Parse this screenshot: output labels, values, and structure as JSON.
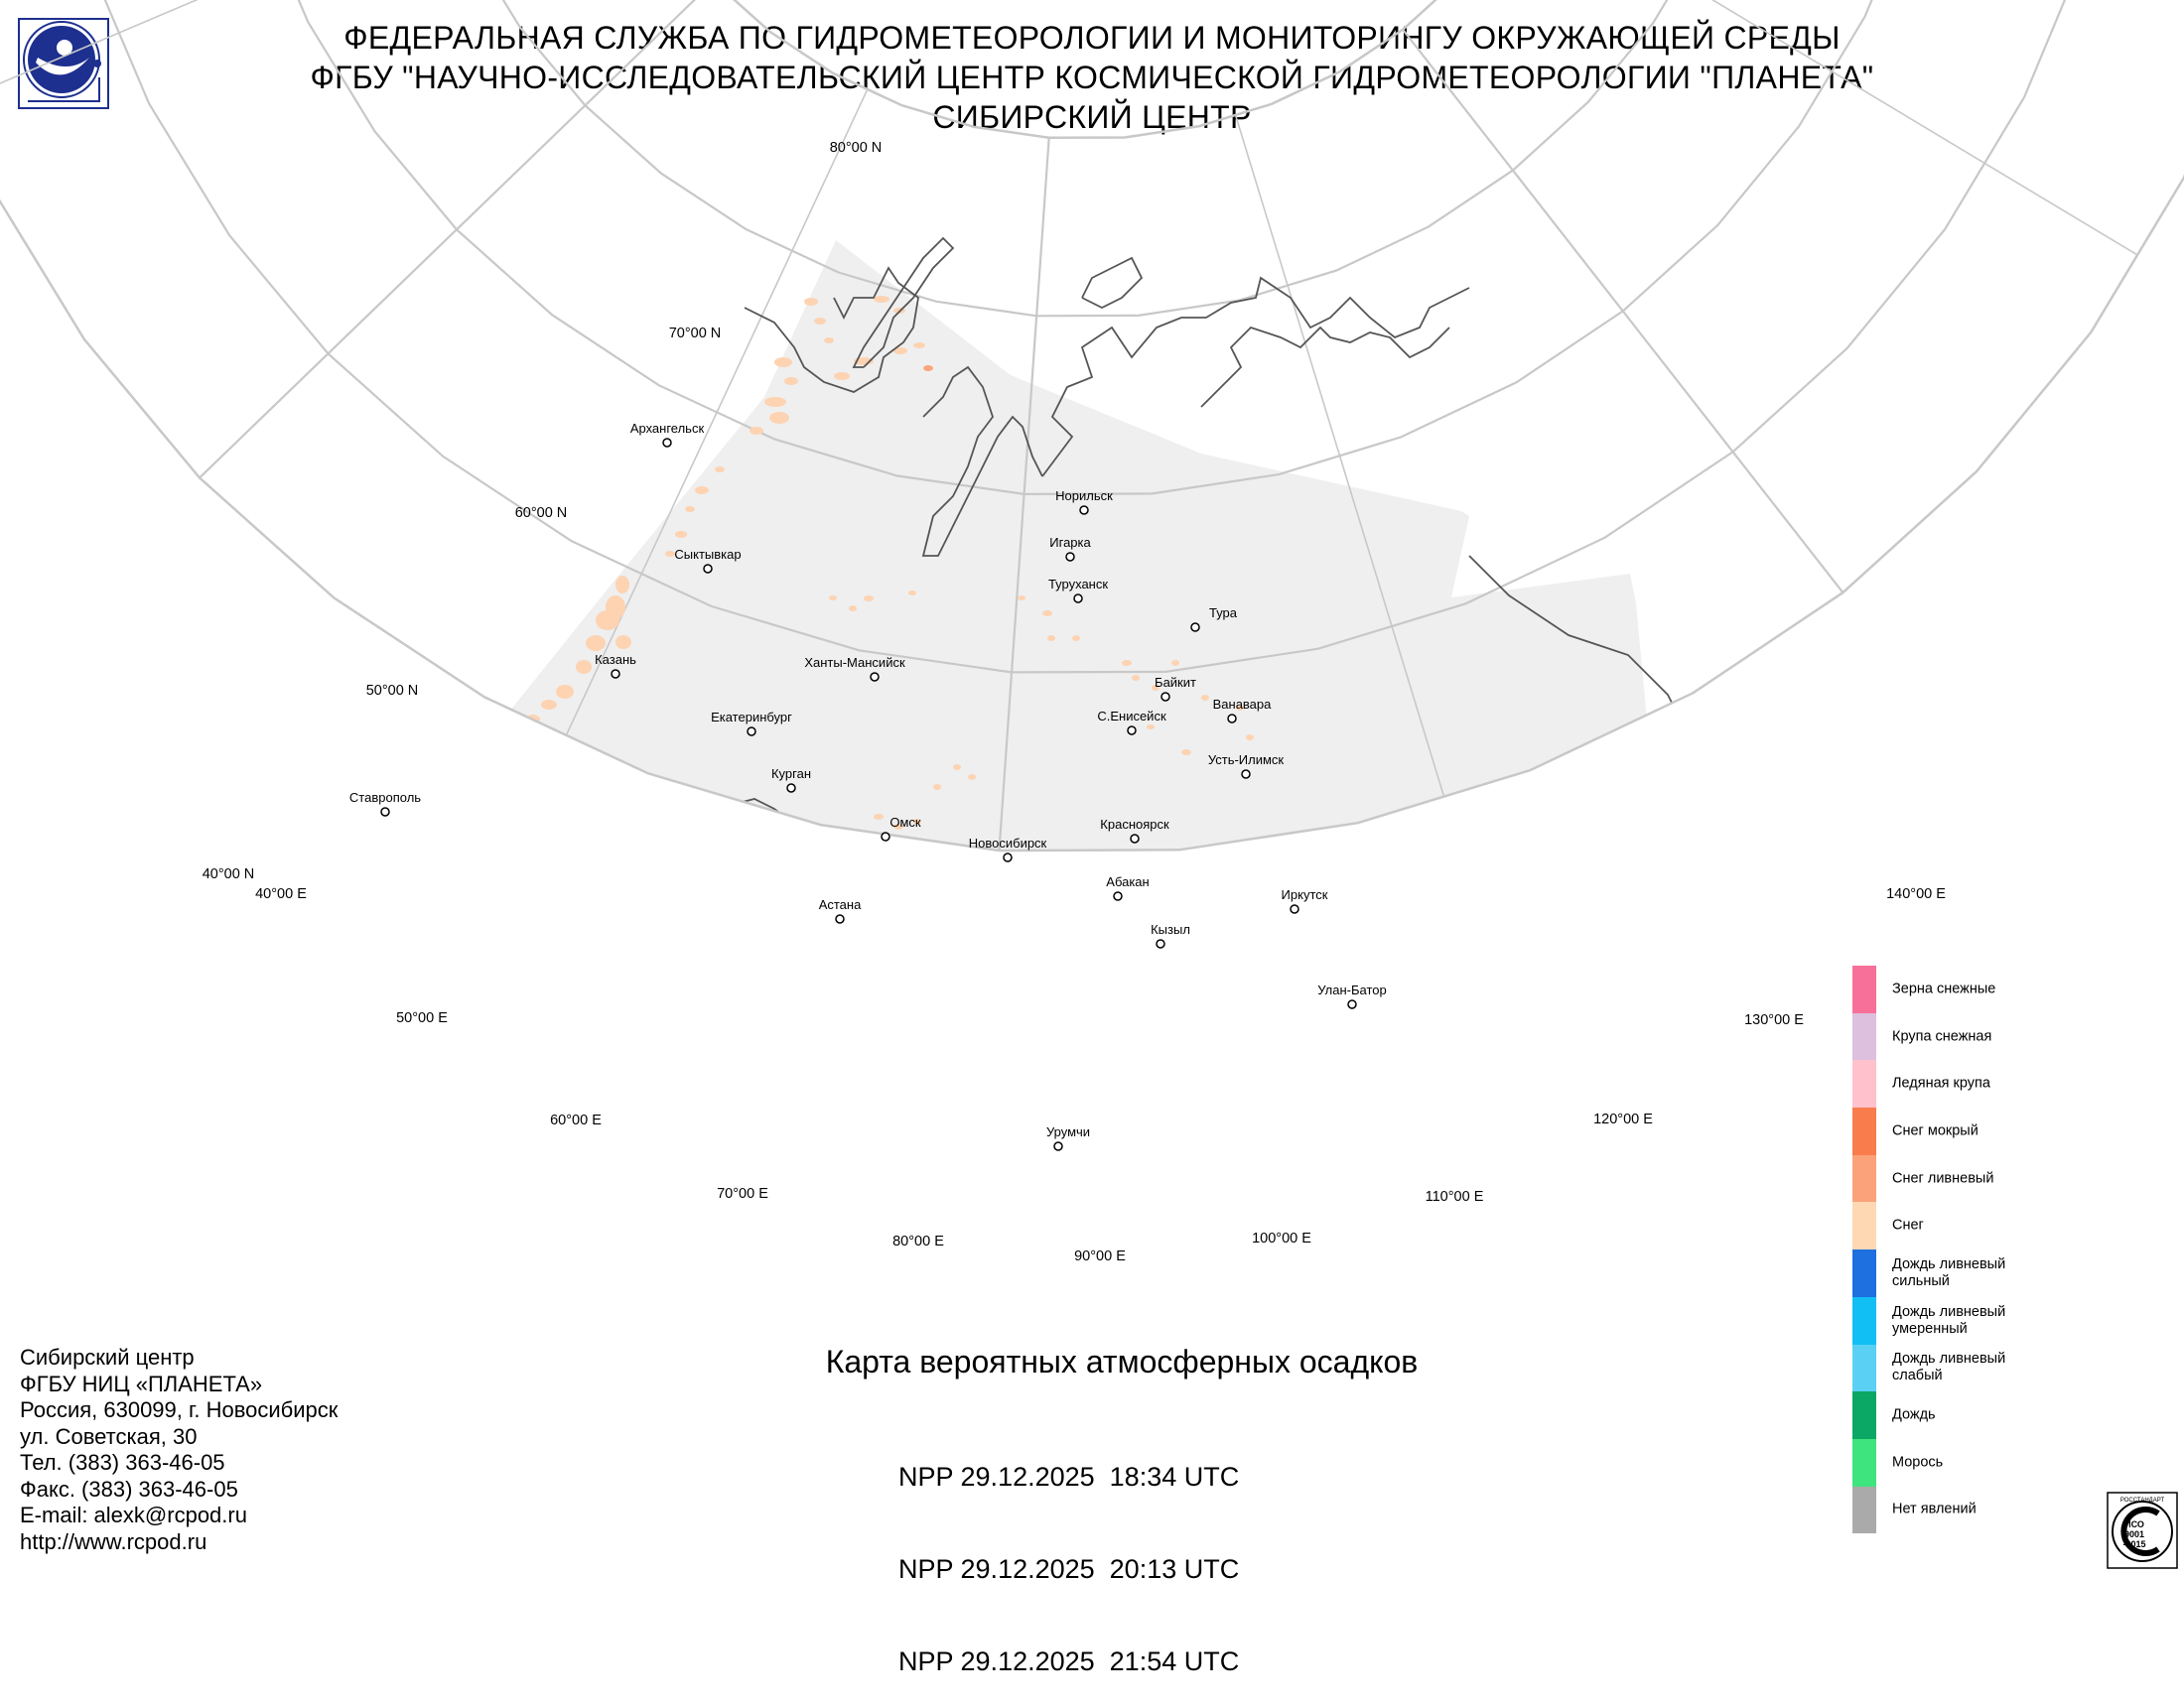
{
  "header": {
    "lines": [
      "ФЕДЕРАЛЬНАЯ СЛУЖБА ПО ГИДРОМЕТЕОРОЛОГИИ И МОНИТОРИНГУ ОКРУЖАЮЩЕЙ СРЕДЫ",
      "ФГБУ \"НАУЧНО-ИССЛЕДОВАТЕЛЬСКИЙ ЦЕНТР КОСМИЧЕСКОЙ ГИДРОМЕТЕОРОЛОГИИ \"ПЛАНЕТА\"",
      "СИБИРСКИЙ ЦЕНТР"
    ]
  },
  "map": {
    "lat_labels": [
      "80°00 N",
      "70°00 N",
      "60°00 N",
      "50°00 N",
      "40°00 N"
    ],
    "lon_labels": [
      "40°00 E",
      "50°00 E",
      "60°00 E",
      "70°00 E",
      "80°00 E",
      "90°00 E",
      "100°00 E",
      "110°00 E",
      "120°00 E",
      "130°00 E",
      "140°00 E"
    ],
    "cities": [
      {
        "name": "Архангельск"
      },
      {
        "name": "Сыктывкар"
      },
      {
        "name": "Казань"
      },
      {
        "name": "Ставрополь"
      },
      {
        "name": "Екатеринбург"
      },
      {
        "name": "Курган"
      },
      {
        "name": "Омск"
      },
      {
        "name": "Ханты-Мансийск"
      },
      {
        "name": "Астана"
      },
      {
        "name": "Новосибирск"
      },
      {
        "name": "Норильск"
      },
      {
        "name": "Игарка"
      },
      {
        "name": "Туруханск"
      },
      {
        "name": "Тура"
      },
      {
        "name": "Байкит"
      },
      {
        "name": "Ванавара"
      },
      {
        "name": "С.Енисейск"
      },
      {
        "name": "Усть-Илимск"
      },
      {
        "name": "Красноярск"
      },
      {
        "name": "Абакан"
      },
      {
        "name": "Кызыл"
      },
      {
        "name": "Иркутск"
      },
      {
        "name": "Улан-Батор"
      },
      {
        "name": "Урумчи"
      }
    ],
    "colors": {
      "grid": "#c8c8c8",
      "coverage": "#efefef",
      "coast": "#555555",
      "snow": "#fdd3b2",
      "snow_shower": "#fba67c",
      "wet_snow": "#f77e4a"
    }
  },
  "map_title": "Карта вероятных атмосферных осадков",
  "passes": [
    "NPP 29.12.2025  18:34 UTC",
    "NPP 29.12.2025  20:13 UTC",
    "NPP 29.12.2025  21:54 UTC"
  ],
  "contacts": [
    "Сибирский центр",
    "ФГБУ НИЦ «ПЛАНЕТА»",
    "Россия, 630099, г. Новосибирск",
    "ул. Советская, 30",
    "Тел. (383) 363-46-05",
    "Факс. (383) 363-46-05",
    "E-mail: alexk@rcpod.ru",
    "http://www.rcpod.ru"
  ],
  "legend": [
    {
      "label": "Зерна снежные",
      "color": "#f7709a"
    },
    {
      "label": "Крупа снежная",
      "color": "#dcc0dd"
    },
    {
      "label": "Ледяная крупа",
      "color": "#ffc1cc"
    },
    {
      "label": "Снег мокрый",
      "color": "#f87c4c"
    },
    {
      "label": "Снег ливневый",
      "color": "#fba27a"
    },
    {
      "label": "Снег",
      "color": "#fed8b2"
    },
    {
      "label": "Дождь ливневый сильный",
      "color": "#1e6fe0"
    },
    {
      "label": "Дождь ливневый умеренный",
      "color": "#12bff5"
    },
    {
      "label": "Дождь ливневый слабый",
      "color": "#5ad0f5"
    },
    {
      "label": "Дождь",
      "color": "#0aa864"
    },
    {
      "label": "Морось",
      "color": "#3ee47e"
    },
    {
      "label": "Нет явлений",
      "color": "#aaaaaa"
    }
  ],
  "iso_badge": {
    "lines": [
      "ИСО",
      "9001",
      "-2015"
    ],
    "ring_text": "РОССТАНДАРТ"
  }
}
